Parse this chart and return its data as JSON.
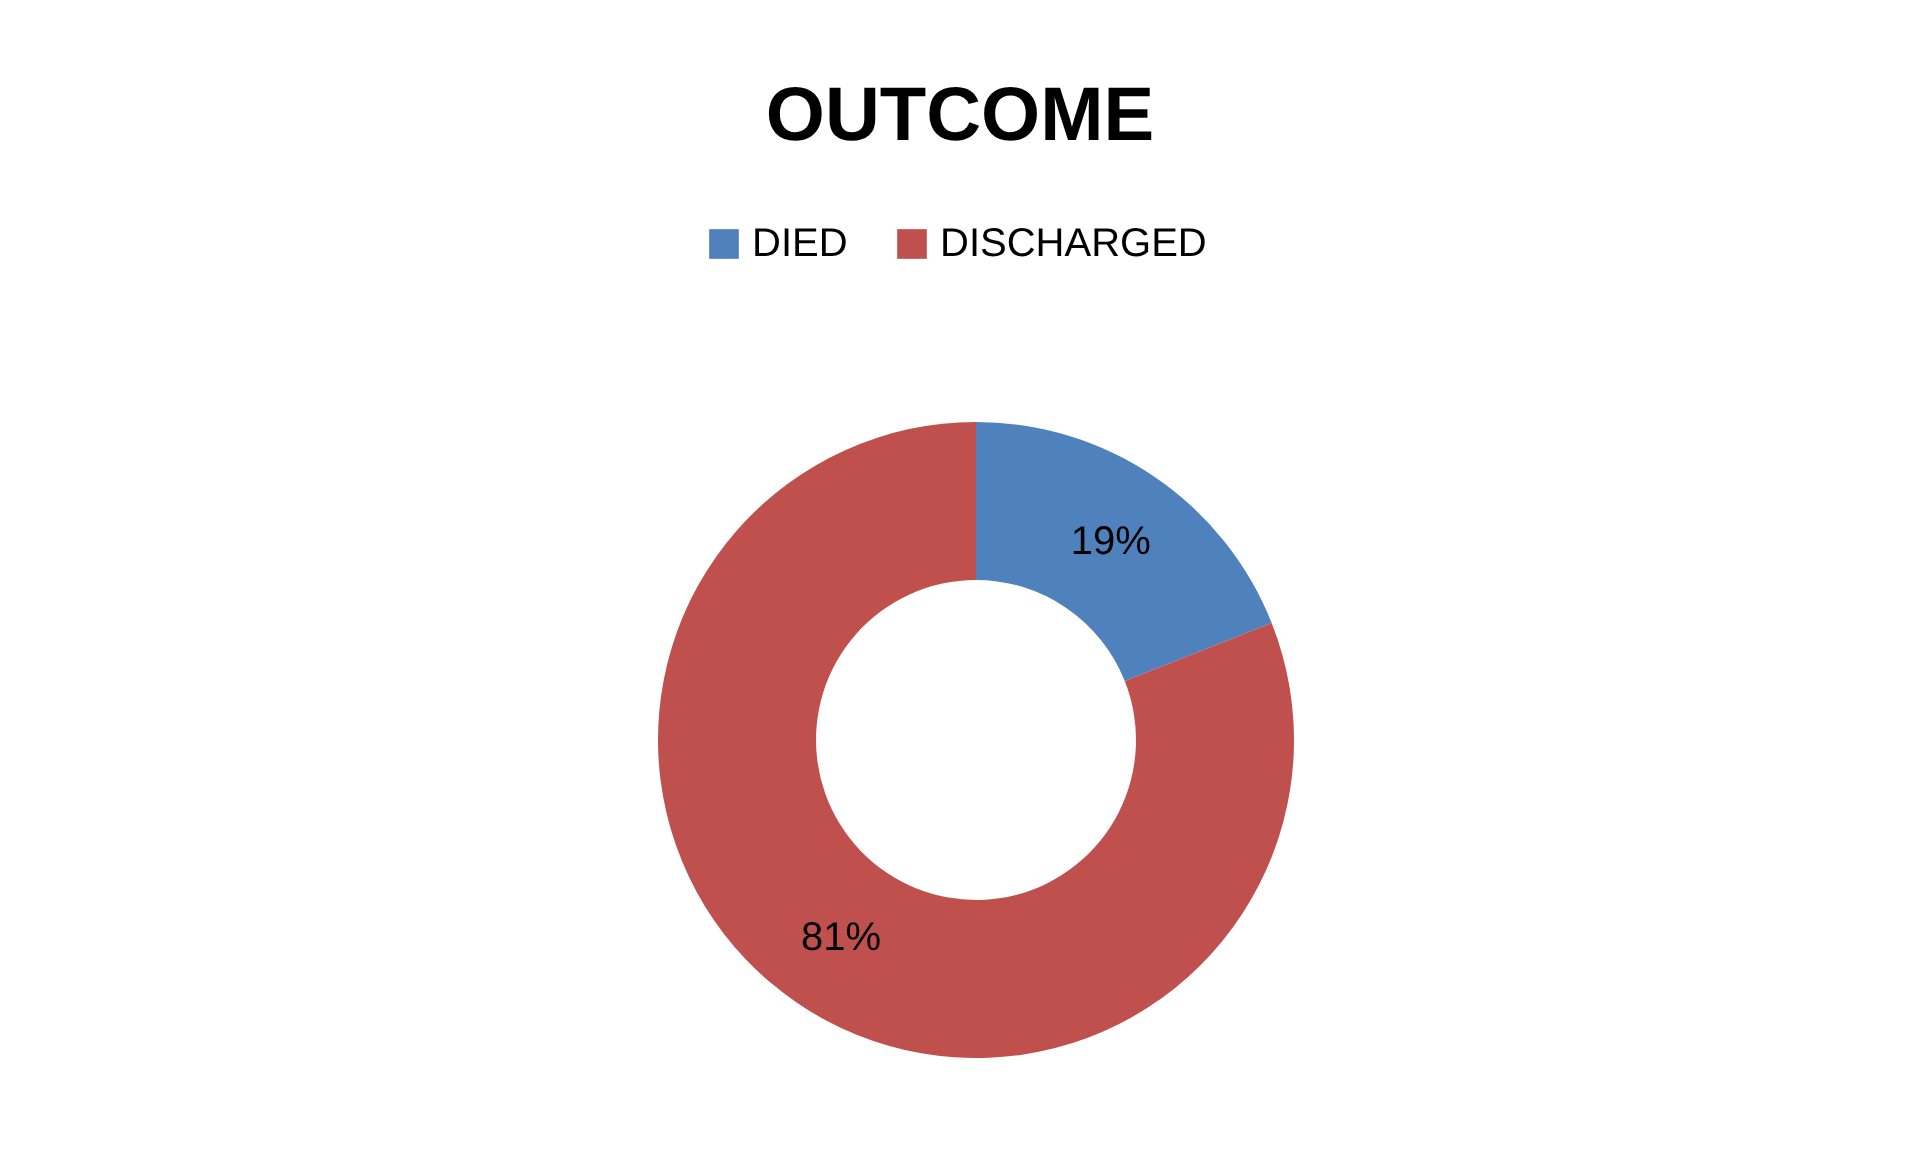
{
  "chart_data": {
    "type": "donut",
    "title": "OUTCOME",
    "categories": [
      "DIED",
      "DISCHARGED"
    ],
    "values": [
      19,
      81
    ],
    "colors": [
      "#4f81bd",
      "#c0504d"
    ],
    "value_labels": [
      "19%",
      "81%"
    ],
    "legend": "top"
  }
}
